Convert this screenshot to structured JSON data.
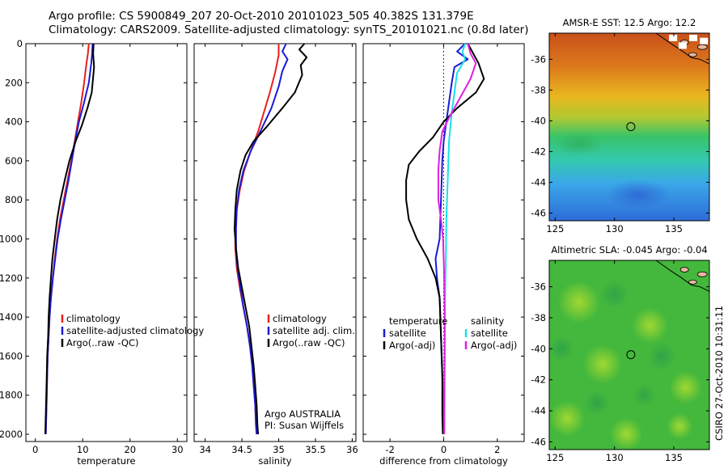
{
  "header": {
    "line1": "Argo profile: CS 5900849_207 20-Oct-2010 20101023_505 40.382S 131.379E",
    "line2": "Climatology: CARS2009. Satellite-adjusted climatology: synTS_20101021.nc (0.8d later)"
  },
  "side_text": "CSIRO 27-Oct-2010 10:31:11",
  "colors": {
    "red": "#e8201c",
    "blue": "#1a1ad6",
    "black": "#000000",
    "cyan": "#18e0ea",
    "magenta": "#e01ee0"
  },
  "chart_data": [
    {
      "type": "line",
      "xlabel": "temperature",
      "xlim": [
        -2,
        32
      ],
      "xticks": [
        0,
        10,
        20,
        30
      ],
      "ylim": [
        0,
        2030
      ],
      "yticks": [
        0,
        200,
        400,
        600,
        800,
        1000,
        1200,
        1400,
        1600,
        1800,
        2000
      ],
      "legend": [
        "climatology",
        "satellite-adjusted climatology",
        "Argo(..raw -QC)"
      ],
      "series": [
        {
          "name": "climatology",
          "color": "red",
          "points": [
            [
              11.3,
              0
            ],
            [
              11.1,
              50
            ],
            [
              10.8,
              100
            ],
            [
              10.3,
              200
            ],
            [
              9.7,
              300
            ],
            [
              9.0,
              400
            ],
            [
              8.3,
              500
            ],
            [
              7.6,
              600
            ],
            [
              6.8,
              700
            ],
            [
              6.0,
              800
            ],
            [
              5.2,
              900
            ],
            [
              4.6,
              1000
            ],
            [
              4.1,
              1100
            ],
            [
              3.7,
              1200
            ],
            [
              3.3,
              1300
            ],
            [
              3.0,
              1400
            ],
            [
              2.8,
              1500
            ],
            [
              2.6,
              1600
            ],
            [
              2.5,
              1700
            ],
            [
              2.4,
              1800
            ],
            [
              2.3,
              1900
            ],
            [
              2.2,
              2000
            ]
          ]
        },
        {
          "name": "satellite-adjusted climatology",
          "color": "blue",
          "points": [
            [
              12.1,
              0
            ],
            [
              12.0,
              50
            ],
            [
              11.8,
              100
            ],
            [
              11.3,
              200
            ],
            [
              10.3,
              300
            ],
            [
              9.2,
              400
            ],
            [
              8.4,
              500
            ],
            [
              7.7,
              600
            ],
            [
              7.0,
              700
            ],
            [
              6.2,
              800
            ],
            [
              5.4,
              900
            ],
            [
              4.7,
              1000
            ],
            [
              4.2,
              1100
            ],
            [
              3.7,
              1200
            ],
            [
              3.3,
              1300
            ],
            [
              3.0,
              1400
            ],
            [
              2.8,
              1500
            ],
            [
              2.6,
              1600
            ],
            [
              2.5,
              1700
            ],
            [
              2.4,
              1800
            ],
            [
              2.3,
              1900
            ],
            [
              2.2,
              2000
            ]
          ]
        },
        {
          "name": "Argo(..raw -QC)",
          "color": "black",
          "points": [
            [
              12.3,
              0
            ],
            [
              12.2,
              50
            ],
            [
              12.4,
              120
            ],
            [
              12.1,
              200
            ],
            [
              11.9,
              250
            ],
            [
              11.0,
              330
            ],
            [
              9.8,
              420
            ],
            [
              8.5,
              500
            ],
            [
              7.2,
              600
            ],
            [
              6.2,
              700
            ],
            [
              5.3,
              800
            ],
            [
              4.6,
              900
            ],
            [
              4.1,
              1000
            ],
            [
              3.6,
              1100
            ],
            [
              3.3,
              1200
            ],
            [
              3.0,
              1300
            ],
            [
              2.8,
              1400
            ],
            [
              2.7,
              1500
            ],
            [
              2.5,
              1600
            ],
            [
              2.4,
              1700
            ],
            [
              2.3,
              1800
            ],
            [
              2.2,
              1900
            ],
            [
              2.1,
              2000
            ]
          ]
        }
      ]
    },
    {
      "type": "line",
      "xlabel": "salinity",
      "xlim": [
        33.85,
        36.05
      ],
      "xticks": [
        34,
        34.5,
        35,
        35.5,
        36
      ],
      "xtick_labels": [
        "34",
        "34.5",
        "35",
        "35.5",
        "36"
      ],
      "ylim": [
        0,
        2030
      ],
      "legend": [
        "climatology",
        "satellite adj. clim.",
        "Argo(..raw -QC)"
      ],
      "annotations": [
        "Argo AUSTRALIA",
        "PI: Susan Wijffels"
      ],
      "series": [
        {
          "name": "climatology",
          "color": "red",
          "points": [
            [
              35.0,
              0
            ],
            [
              35.0,
              60
            ],
            [
              34.95,
              150
            ],
            [
              34.88,
              250
            ],
            [
              34.8,
              350
            ],
            [
              34.72,
              450
            ],
            [
              34.62,
              550
            ],
            [
              34.53,
              650
            ],
            [
              34.47,
              750
            ],
            [
              34.43,
              850
            ],
            [
              34.41,
              950
            ],
            [
              34.41,
              1050
            ],
            [
              34.43,
              1150
            ],
            [
              34.47,
              1250
            ],
            [
              34.52,
              1350
            ],
            [
              34.57,
              1450
            ],
            [
              34.61,
              1550
            ],
            [
              34.64,
              1650
            ],
            [
              34.66,
              1750
            ],
            [
              34.68,
              1850
            ],
            [
              34.69,
              1950
            ],
            [
              34.7,
              2000
            ]
          ]
        },
        {
          "name": "satellite adj. clim.",
          "color": "blue",
          "points": [
            [
              35.1,
              0
            ],
            [
              35.05,
              40
            ],
            [
              35.12,
              80
            ],
            [
              35.05,
              140
            ],
            [
              35.0,
              220
            ],
            [
              34.9,
              330
            ],
            [
              34.75,
              450
            ],
            [
              34.62,
              550
            ],
            [
              34.52,
              650
            ],
            [
              34.46,
              750
            ],
            [
              34.43,
              850
            ],
            [
              34.42,
              950
            ],
            [
              34.42,
              1050
            ],
            [
              34.44,
              1150
            ],
            [
              34.48,
              1250
            ],
            [
              34.52,
              1350
            ],
            [
              34.57,
              1450
            ],
            [
              34.61,
              1550
            ],
            [
              34.64,
              1650
            ],
            [
              34.66,
              1750
            ],
            [
              34.68,
              1850
            ],
            [
              34.69,
              1950
            ],
            [
              34.7,
              2000
            ]
          ]
        },
        {
          "name": "Argo(..raw -QC)",
          "color": "black",
          "points": [
            [
              35.35,
              0
            ],
            [
              35.28,
              30
            ],
            [
              35.38,
              70
            ],
            [
              35.3,
              110
            ],
            [
              35.32,
              160
            ],
            [
              35.22,
              250
            ],
            [
              35.05,
              330
            ],
            [
              34.85,
              420
            ],
            [
              34.66,
              500
            ],
            [
              34.55,
              570
            ],
            [
              34.48,
              650
            ],
            [
              34.43,
              750
            ],
            [
              34.41,
              850
            ],
            [
              34.4,
              950
            ],
            [
              34.42,
              1050
            ],
            [
              34.45,
              1150
            ],
            [
              34.5,
              1250
            ],
            [
              34.55,
              1350
            ],
            [
              34.6,
              1450
            ],
            [
              34.63,
              1550
            ],
            [
              34.66,
              1650
            ],
            [
              34.68,
              1750
            ],
            [
              34.7,
              1850
            ],
            [
              34.71,
              1950
            ],
            [
              34.72,
              2000
            ]
          ]
        }
      ]
    },
    {
      "type": "line",
      "xlabel": "difference from climatology",
      "xlim": [
        -3,
        3
      ],
      "xticks": [
        -2,
        0,
        2
      ],
      "ylim": [
        0,
        2030
      ],
      "legend": {
        "temperature": [
          "temperature",
          "satellite",
          "Argo(-adj)"
        ],
        "salinity": [
          "salinity",
          "satellite",
          "Argo(-adj)"
        ]
      },
      "series": [
        {
          "name": "temperature satellite",
          "color": "blue",
          "points": [
            [
              0.8,
              0
            ],
            [
              0.5,
              40
            ],
            [
              0.9,
              80
            ],
            [
              0.4,
              120
            ],
            [
              0.3,
              200
            ],
            [
              0.2,
              300
            ],
            [
              0.1,
              400
            ],
            [
              0.0,
              500
            ],
            [
              -0.05,
              600
            ],
            [
              -0.1,
              800
            ],
            [
              -0.15,
              1000
            ],
            [
              -0.3,
              1100
            ],
            [
              -0.25,
              1200
            ],
            [
              -0.15,
              1300
            ],
            [
              -0.1,
              1500
            ],
            [
              -0.05,
              1700
            ],
            [
              0.0,
              1900
            ],
            [
              0.0,
              2000
            ]
          ]
        },
        {
          "name": "temperature Argo(-adj)",
          "color": "black",
          "points": [
            [
              0.9,
              0
            ],
            [
              1.1,
              50
            ],
            [
              1.3,
              100
            ],
            [
              1.5,
              180
            ],
            [
              1.2,
              250
            ],
            [
              0.5,
              330
            ],
            [
              0.0,
              400
            ],
            [
              -0.4,
              480
            ],
            [
              -0.9,
              550
            ],
            [
              -1.3,
              620
            ],
            [
              -1.4,
              700
            ],
            [
              -1.4,
              800
            ],
            [
              -1.3,
              900
            ],
            [
              -1.0,
              1000
            ],
            [
              -0.6,
              1100
            ],
            [
              -0.3,
              1200
            ],
            [
              -0.15,
              1300
            ],
            [
              -0.1,
              1500
            ],
            [
              -0.05,
              1700
            ],
            [
              -0.05,
              1900
            ],
            [
              -0.03,
              2000
            ]
          ]
        },
        {
          "name": "salinity satellite",
          "color": "cyan",
          "points": [
            [
              0.8,
              0
            ],
            [
              0.7,
              40
            ],
            [
              0.8,
              80
            ],
            [
              0.5,
              150
            ],
            [
              0.4,
              250
            ],
            [
              0.3,
              350
            ],
            [
              0.2,
              500
            ],
            [
              0.15,
              700
            ],
            [
              0.1,
              900
            ],
            [
              0.08,
              1100
            ],
            [
              0.05,
              1300
            ],
            [
              0.03,
              1600
            ],
            [
              0.02,
              1800
            ],
            [
              0.02,
              2000
            ]
          ]
        },
        {
          "name": "salinity Argo(-adj)",
          "color": "magenta",
          "points": [
            [
              0.9,
              0
            ],
            [
              1.0,
              50
            ],
            [
              1.2,
              100
            ],
            [
              1.0,
              180
            ],
            [
              0.6,
              280
            ],
            [
              0.2,
              380
            ],
            [
              -0.05,
              450
            ],
            [
              -0.15,
              550
            ],
            [
              -0.2,
              650
            ],
            [
              -0.2,
              800
            ],
            [
              -0.1,
              900
            ],
            [
              -0.02,
              1000
            ],
            [
              0.02,
              1200
            ],
            [
              0.04,
              1400
            ],
            [
              0.04,
              1600
            ],
            [
              0.03,
              1800
            ],
            [
              0.02,
              2000
            ]
          ]
        }
      ]
    },
    {
      "type": "heatmap",
      "title": "AMSR-E SST: 12.5 Argo: 12.2",
      "xlim": [
        124.5,
        138
      ],
      "ylim": [
        -46.5,
        -34.3
      ],
      "xticks": [
        125,
        130,
        135
      ],
      "yticks": [
        -36,
        -38,
        -40,
        -42,
        -44,
        -46
      ],
      "ytick_labels": [
        "-36",
        "-38",
        "-40",
        "-42",
        "-44",
        "-46"
      ],
      "marker": [
        131.379,
        -40.382
      ]
    },
    {
      "type": "heatmap",
      "title": "Altimetric SLA: -0.045 Argo: -0.04",
      "xlim": [
        124.5,
        138
      ],
      "ylim": [
        -46.5,
        -34.3
      ],
      "xticks": [
        125,
        130,
        135
      ],
      "yticks": [
        -36,
        -38,
        -40,
        -42,
        -44,
        -46
      ],
      "ytick_labels": [
        "-36",
        "-38",
        "-40",
        "-42",
        "-44",
        "-46"
      ],
      "marker": [
        131.379,
        -40.382
      ]
    }
  ]
}
